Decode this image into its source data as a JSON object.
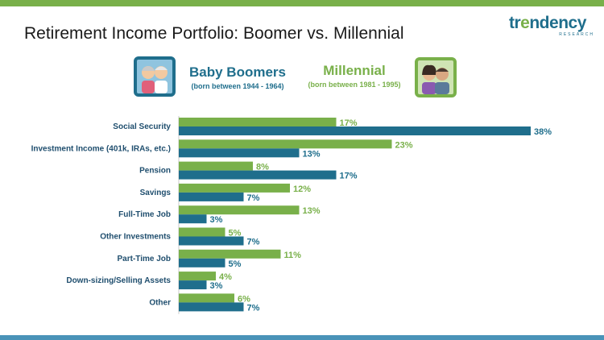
{
  "title": "Retirement Income Portfolio: Boomer vs. Millennial",
  "logo": {
    "name": "trendency",
    "sub": "RESEARCH"
  },
  "groups": {
    "boomers": {
      "name": "Baby Boomers",
      "born": "(born between 1944 - 1964)"
    },
    "millennial": {
      "name": "Millennial",
      "born": "(born between 1981 - 1995)"
    }
  },
  "colors": {
    "millennial": "#79b04a",
    "boomers": "#1f6e8c",
    "axis": "#c8c8c8"
  },
  "chart_data": {
    "type": "bar",
    "orientation": "horizontal",
    "categories": [
      "Social Security",
      "Investment Income (401k, IRAs, etc.)",
      "Pension",
      "Savings",
      "Full-Time Job",
      "Other Investments",
      "Part-Time Job",
      "Down-sizing/Selling Assets",
      "Other"
    ],
    "series": [
      {
        "name": "Millennial",
        "values": [
          17,
          23,
          8,
          12,
          13,
          5,
          11,
          4,
          6
        ]
      },
      {
        "name": "Baby Boomers",
        "values": [
          38,
          13,
          17,
          7,
          3,
          7,
          5,
          3,
          7
        ]
      }
    ],
    "value_suffix": "%",
    "xlim": [
      0,
      40
    ],
    "grid": false,
    "legend": "top"
  }
}
